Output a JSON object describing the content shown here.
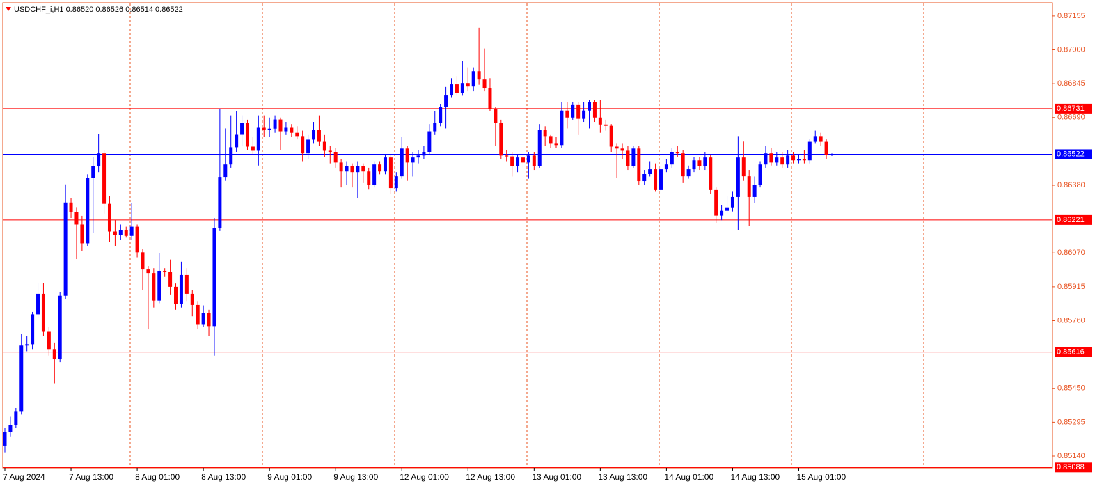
{
  "chart_data": {
    "type": "candlestick",
    "title": "USDCHF_i,H1  0.86520 0.86526 0.86514 0.86522",
    "categories": [
      "7 Aug 2024",
      null,
      null,
      null,
      null,
      null,
      null,
      null,
      null,
      null,
      null,
      null,
      "7 Aug 13:00",
      null,
      null,
      null,
      null,
      null,
      null,
      null,
      null,
      null,
      null,
      null,
      "8 Aug 01:00",
      null,
      null,
      null,
      null,
      null,
      null,
      null,
      null,
      null,
      null,
      null,
      "8 Aug 13:00",
      null,
      null,
      null,
      null,
      null,
      null,
      null,
      null,
      null,
      null,
      null,
      "9 Aug 01:00",
      null,
      null,
      null,
      null,
      null,
      null,
      null,
      null,
      null,
      null,
      null,
      "9 Aug 13:00",
      null,
      null,
      null,
      null,
      null,
      null,
      null,
      null,
      null,
      null,
      null,
      "12 Aug 01:00",
      null,
      null,
      null,
      null,
      null,
      null,
      null,
      null,
      null,
      null,
      null,
      "12 Aug 13:00",
      null,
      null,
      null,
      null,
      null,
      null,
      null,
      null,
      null,
      null,
      null,
      "13 Aug 01:00",
      null,
      null,
      null,
      null,
      null,
      null,
      null,
      null,
      null,
      null,
      null,
      "13 Aug 13:00",
      null,
      null,
      null,
      null,
      null,
      null,
      null,
      null,
      null,
      null,
      null,
      "14 Aug 01:00",
      null,
      null,
      null,
      null,
      null,
      null,
      null,
      null,
      null,
      null,
      null,
      "14 Aug 13:00",
      null,
      null,
      null,
      null,
      null,
      null,
      null,
      null,
      null,
      null,
      null,
      "15 Aug 01:00",
      null,
      null,
      null,
      null,
      null,
      null
    ],
    "open": [
      0.85188,
      0.85251,
      0.85282,
      0.85346,
      0.85646,
      0.85652,
      0.85789,
      0.85883,
      0.85709,
      0.8563,
      0.85583,
      0.85874,
      0.86301,
      0.86257,
      0.862,
      0.86114,
      0.86412,
      0.86469,
      0.86526,
      0.86295,
      0.86168,
      0.86152,
      0.86174,
      0.86148,
      0.8619,
      0.86073,
      0.85994,
      0.85978,
      0.85852,
      0.85988,
      0.85984,
      0.85915,
      0.85836,
      0.85969,
      0.85883,
      0.85832,
      0.85741,
      0.85795,
      0.85735,
      0.86184,
      0.86418,
      0.86475,
      0.86554,
      0.86611,
      0.86665,
      0.86557,
      0.86538,
      0.86643,
      0.86633,
      0.86639,
      0.86681,
      0.86627,
      0.86643,
      0.8662,
      0.86602,
      0.86526,
      0.86589,
      0.86633,
      0.86579,
      0.86538,
      0.86532,
      0.86484,
      0.86443,
      0.86469,
      0.8644,
      0.86469,
      0.86443,
      0.8638,
      0.86475,
      0.86443,
      0.86507,
      0.86367,
      0.86421,
      0.86548,
      0.86484,
      0.86507,
      0.86516,
      0.86532,
      0.86627,
      0.86665,
      0.86738,
      0.86791,
      0.86842,
      0.86801,
      0.86848,
      0.86832,
      0.86902,
      0.86864,
      0.86823,
      0.86731,
      0.86665,
      0.86516,
      0.86512,
      0.86469,
      0.86507,
      0.86484,
      0.86516,
      0.86469,
      0.86633,
      0.86602,
      0.8657,
      0.86564,
      0.86722,
      0.8669,
      0.86747,
      0.86684,
      0.86722,
      0.8676,
      0.8669,
      0.86658,
      0.86652,
      0.86557,
      0.86548,
      0.86538,
      0.86469,
      0.86548,
      0.86399,
      0.86431,
      0.86453,
      0.86358,
      0.86453,
      0.86475,
      0.86532,
      0.86526,
      0.86421,
      0.86453,
      0.86494,
      0.86469,
      0.86507,
      0.86358,
      0.86241,
      0.86263,
      0.86279,
      0.86326,
      0.86507,
      0.86421,
      0.86326,
      0.8638,
      0.86475,
      0.86526,
      0.86484,
      0.86507,
      0.86475,
      0.86516,
      0.86494,
      0.865,
      0.86494,
      0.86579,
      0.86602,
      0.86579,
      0.8652
    ],
    "high": [
      0.8527,
      0.8532,
      0.8536,
      0.857,
      0.8569,
      0.858,
      0.85931,
      0.85931,
      0.8573,
      0.8566,
      0.8589,
      0.86384,
      0.8632,
      0.8628,
      0.8624,
      0.8643,
      0.8651,
      0.86614,
      0.8654,
      0.8633,
      0.8622,
      0.862,
      0.8619,
      0.863,
      0.862,
      0.8609,
      0.8601,
      0.86,
      0.8607,
      0.86,
      0.8604,
      0.8593,
      0.8603,
      0.86,
      0.859,
      0.8585,
      0.8583,
      0.8581,
      0.8623,
      0.86731,
      0.8664,
      0.867,
      0.8672,
      0.867,
      0.8668,
      0.866,
      0.867,
      0.867,
      0.8669,
      0.867,
      0.8669,
      0.8667,
      0.8666,
      0.8665,
      0.8663,
      0.8661,
      0.8667,
      0.867,
      0.8661,
      0.8656,
      0.8655,
      0.865,
      0.8649,
      0.8648,
      0.8649,
      0.8648,
      0.8646,
      0.8649,
      0.8649,
      0.8652,
      0.8652,
      0.8644,
      0.866,
      0.8656,
      0.8653,
      0.8654,
      0.8656,
      0.8666,
      0.8672,
      0.8675,
      0.8683,
      0.8687,
      0.8688,
      0.8695,
      0.8692,
      0.8692,
      0.87101,
      0.87006,
      0.8687,
      0.8674,
      0.8668,
      0.8654,
      0.8653,
      0.8652,
      0.8652,
      0.8653,
      0.8653,
      0.8666,
      0.8665,
      0.8661,
      0.866,
      0.8676,
      0.8676,
      0.8676,
      0.8676,
      0.8676,
      0.8677,
      0.8677,
      0.8677,
      0.8668,
      0.8666,
      0.8657,
      0.8657,
      0.8656,
      0.8656,
      0.8656,
      0.8645,
      0.8649,
      0.8648,
      0.8647,
      0.865,
      0.8655,
      0.8656,
      0.8654,
      0.8647,
      0.8651,
      0.8651,
      0.8653,
      0.8652,
      0.8637,
      0.8629,
      0.8633,
      0.8635,
      0.86602,
      0.8658,
      0.8645,
      0.8642,
      0.8649,
      0.8656,
      0.8655,
      0.8653,
      0.8653,
      0.8654,
      0.8653,
      0.8652,
      0.8654,
      0.8659,
      0.8663,
      0.8662,
      0.8659,
      0.86526
    ],
    "low": [
      0.85157,
      0.8523,
      0.8527,
      0.8533,
      0.8562,
      0.8563,
      0.8577,
      0.8569,
      0.856,
      0.85473,
      0.8557,
      0.8586,
      0.8623,
      0.86042,
      0.8608,
      0.861,
      0.8616,
      0.8644,
      0.8625,
      0.8612,
      0.861,
      0.8613,
      0.8614,
      0.8613,
      0.8605,
      0.859,
      0.8572,
      0.8582,
      0.8584,
      0.8596,
      0.8588,
      0.8581,
      0.8582,
      0.8585,
      0.8578,
      0.8572,
      0.8573,
      0.8569,
      0.856,
      0.8617,
      0.864,
      0.8646,
      0.8653,
      0.8656,
      0.8654,
      0.8652,
      0.8647,
      0.866,
      0.866,
      0.8662,
      0.8654,
      0.8661,
      0.866,
      0.8659,
      0.8649,
      0.865,
      0.8657,
      0.8656,
      0.8651,
      0.8648,
      0.8646,
      0.8637,
      0.8638,
      0.8637,
      0.8632,
      0.8639,
      0.8636,
      0.8637,
      0.8643,
      0.8643,
      0.8634,
      0.8635,
      0.8641,
      0.864,
      0.8642,
      0.8648,
      0.865,
      0.8652,
      0.8661,
      0.8665,
      0.8664,
      0.8678,
      0.8679,
      0.8679,
      0.8681,
      0.8681,
      0.8684,
      0.8681,
      0.8672,
      0.8656,
      0.865,
      0.8649,
      0.8642,
      0.8644,
      0.8646,
      0.8641,
      0.8645,
      0.8646,
      0.8656,
      0.8655,
      0.8655,
      0.8655,
      0.8664,
      0.8668,
      0.8661,
      0.8667,
      0.8664,
      0.8667,
      0.8662,
      0.8663,
      0.8653,
      0.86412,
      0.865,
      0.8645,
      0.8646,
      0.8638,
      0.8638,
      0.8642,
      0.8635,
      0.8635,
      0.8644,
      0.8646,
      0.8651,
      0.8639,
      0.8641,
      0.8644,
      0.8645,
      0.8645,
      0.8634,
      0.86208,
      0.8622,
      0.8625,
      0.8626,
      0.86175,
      0.864,
      0.86194,
      0.863,
      0.8637,
      0.8646,
      0.8647,
      0.8647,
      0.8646,
      0.8646,
      0.8648,
      0.8648,
      0.8648,
      0.8648,
      0.8657,
      0.8656,
      0.865,
      0.86514
    ],
    "close": [
      0.85251,
      0.85282,
      0.85346,
      0.85646,
      0.85652,
      0.85789,
      0.85883,
      0.85709,
      0.8563,
      0.85583,
      0.85874,
      0.86301,
      0.86257,
      0.862,
      0.86114,
      0.86412,
      0.86469,
      0.86526,
      0.86295,
      0.86168,
      0.86152,
      0.86174,
      0.86148,
      0.8619,
      0.86073,
      0.85994,
      0.85978,
      0.85852,
      0.85988,
      0.85984,
      0.85915,
      0.85836,
      0.85969,
      0.85883,
      0.85832,
      0.85741,
      0.85795,
      0.85735,
      0.86184,
      0.86418,
      0.86475,
      0.86554,
      0.86611,
      0.86665,
      0.86557,
      0.86538,
      0.86643,
      0.86633,
      0.86639,
      0.86681,
      0.86627,
      0.86643,
      0.8662,
      0.86602,
      0.86526,
      0.86589,
      0.86633,
      0.86579,
      0.86538,
      0.86532,
      0.86484,
      0.86443,
      0.86469,
      0.8644,
      0.86469,
      0.86443,
      0.8638,
      0.86475,
      0.86443,
      0.86507,
      0.86367,
      0.86421,
      0.86548,
      0.86484,
      0.86507,
      0.86516,
      0.86532,
      0.86627,
      0.86665,
      0.86738,
      0.86791,
      0.86842,
      0.86801,
      0.86848,
      0.86832,
      0.86902,
      0.86864,
      0.86823,
      0.86731,
      0.86665,
      0.86516,
      0.86512,
      0.86469,
      0.86507,
      0.86484,
      0.86516,
      0.86469,
      0.86633,
      0.86602,
      0.8657,
      0.86564,
      0.86722,
      0.8669,
      0.86747,
      0.86684,
      0.86722,
      0.8676,
      0.8669,
      0.86658,
      0.86652,
      0.86557,
      0.86548,
      0.86538,
      0.86469,
      0.86548,
      0.86399,
      0.86431,
      0.86453,
      0.86358,
      0.86453,
      0.86475,
      0.86532,
      0.86526,
      0.86421,
      0.86453,
      0.86494,
      0.86469,
      0.86507,
      0.86358,
      0.86241,
      0.86263,
      0.86279,
      0.86326,
      0.86507,
      0.86421,
      0.86326,
      0.8638,
      0.86475,
      0.86526,
      0.86484,
      0.86507,
      0.86475,
      0.86516,
      0.86494,
      0.865,
      0.86494,
      0.86579,
      0.86602,
      0.86579,
      0.8652,
      0.86522
    ],
    "up_color": "#0000ff",
    "down_color": "#ff0000",
    "axis_color": "#e8501e",
    "ylim": [
      0.85089,
      0.87212
    ],
    "yticks": [
      0.87155,
      {
        "value": 0.87,
        "label": "0.87000"
      },
      0.86845,
      {
        "value": 0.8669,
        "label": "0.86690"
      },
      {
        "value": 0.8638,
        "label": "0.86380"
      },
      {
        "value": 0.8607,
        "label": "0.86070"
      },
      0.85915,
      {
        "value": 0.8576,
        "label": "0.85760"
      },
      {
        "value": 0.8545,
        "label": "0.85450"
      },
      0.85295,
      {
        "value": 0.8514,
        "label": "0.85140"
      }
    ],
    "hlines": [
      {
        "value": 0.86731,
        "color": "#ff0000"
      },
      {
        "value": 0.86522,
        "color": "#0000ff"
      },
      {
        "value": 0.86221,
        "color": "#ff0000"
      },
      {
        "value": 0.85616,
        "color": "#ff0000"
      },
      {
        "value": 0.85088,
        "color": "#ff0000"
      }
    ],
    "grid": false
  }
}
